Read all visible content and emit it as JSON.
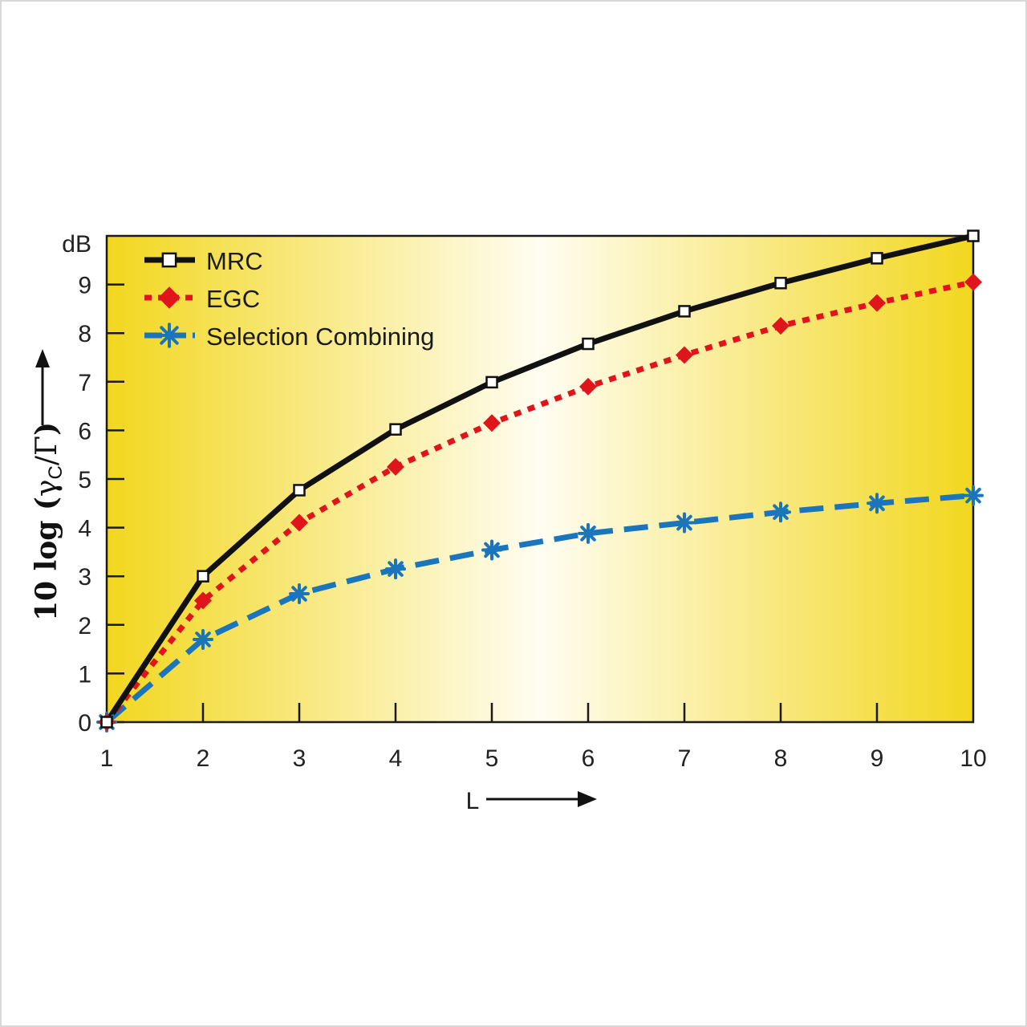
{
  "chart_data": {
    "type": "line",
    "title": "",
    "xlabel": "L",
    "ylabel_parts": {
      "prefix": "10 log (",
      "gamma": "γ",
      "sub": "C",
      "slash": "/",
      "gamma_cap": "Γ",
      "suffix": ")"
    },
    "y_unit_label": "dB",
    "x": [
      1,
      2,
      3,
      4,
      5,
      6,
      7,
      8,
      9,
      10
    ],
    "x_ticks": [
      "1",
      "2",
      "3",
      "4",
      "5",
      "6",
      "7",
      "8",
      "9",
      "10"
    ],
    "y_ticks": [
      "0",
      "1",
      "2",
      "3",
      "4",
      "5",
      "6",
      "7",
      "8",
      "9"
    ],
    "xlim": [
      1,
      10
    ],
    "ylim": [
      0,
      10
    ],
    "legend_position": "top-left",
    "series": [
      {
        "name": "MRC",
        "color": "#111111",
        "line_style": "solid",
        "marker": "open-square",
        "values": [
          0,
          3.0,
          4.77,
          6.02,
          6.99,
          7.78,
          8.45,
          9.03,
          9.54,
          10.0
        ]
      },
      {
        "name": "EGC",
        "color": "#e0151c",
        "line_style": "dotted",
        "marker": "diamond",
        "values": [
          0,
          2.5,
          4.1,
          5.25,
          6.15,
          6.9,
          7.55,
          8.15,
          8.62,
          9.05
        ]
      },
      {
        "name": "Selection Combining",
        "color": "#1a75bc",
        "line_style": "dashed",
        "marker": "asterisk",
        "values": [
          0,
          1.7,
          2.64,
          3.15,
          3.54,
          3.88,
          4.1,
          4.32,
          4.5,
          4.66
        ]
      }
    ],
    "background_gradient": {
      "edge": "#f2d71e",
      "center": "#fffdf2"
    }
  }
}
